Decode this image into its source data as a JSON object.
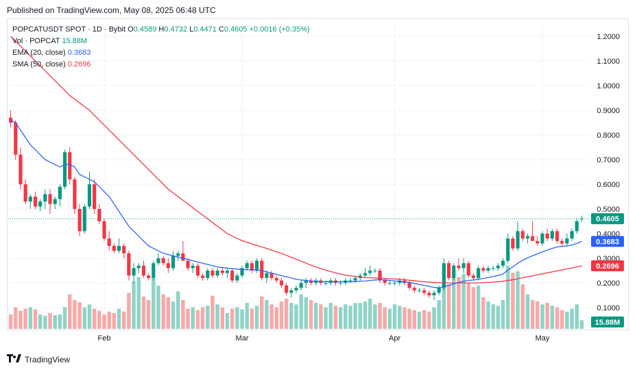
{
  "published": "Published on TradingView.com, May 08, 2025 06:48 UTC",
  "legend": {
    "symbol": "POPCATUSDT SPOT · 1D · Bybit",
    "o_label": "O",
    "o": "0.4589",
    "h_label": "H",
    "h": "0.4732",
    "l_label": "L",
    "l": "0.4471",
    "c_label": "C",
    "c": "0.4605",
    "change": "+0.0016 (+0.35%)",
    "vol_label": "Vol · POPCAT",
    "vol": "15.88M",
    "ema_label": "EMA (20, close)",
    "ema": "0.3683",
    "sma_label": "SMA (50, close)",
    "sma": "0.2696"
  },
  "brand": "TradingView",
  "colors": {
    "up": "#089981",
    "down": "#f23645",
    "ema": "#2962ff",
    "sma": "#f23645",
    "grid": "#f0f3fa",
    "vol_up": "#8fd3c7",
    "vol_down": "#f7a9a7"
  },
  "chart_data": {
    "type": "candlestick",
    "y_ticks": [
      "1.2000",
      "1.1000",
      "1.0000",
      "0.9000",
      "0.8000",
      "0.7000",
      "0.6000",
      "0.5000",
      "0.4000",
      "0.3000",
      "0.2000",
      "0.1000"
    ],
    "ylim": [
      0.0,
      1.22
    ],
    "x_labels": [
      {
        "label": "Feb",
        "index": 19
      },
      {
        "label": "Mar",
        "index": 47
      },
      {
        "label": "Apr",
        "index": 78
      },
      {
        "label": "May",
        "index": 108
      }
    ],
    "price_badges": [
      {
        "text": "0.4605",
        "value": 0.4605,
        "color": "#089981"
      },
      {
        "text": "0.3683",
        "value": 0.3683,
        "color": "#2962ff"
      },
      {
        "text": "0.2696",
        "value": 0.2696,
        "color": "#f23645"
      }
    ],
    "volume_badge": {
      "text": "15.88M",
      "color": "#089981"
    },
    "candles": [
      [
        0.87,
        0.9,
        0.83,
        0.85
      ],
      [
        0.85,
        0.86,
        0.7,
        0.72
      ],
      [
        0.72,
        0.75,
        0.58,
        0.6
      ],
      [
        0.6,
        0.62,
        0.52,
        0.53
      ],
      [
        0.53,
        0.56,
        0.5,
        0.55
      ],
      [
        0.55,
        0.57,
        0.5,
        0.51
      ],
      [
        0.51,
        0.54,
        0.49,
        0.53
      ],
      [
        0.53,
        0.58,
        0.5,
        0.56
      ],
      [
        0.56,
        0.58,
        0.48,
        0.52
      ],
      [
        0.52,
        0.55,
        0.5,
        0.54
      ],
      [
        0.54,
        0.6,
        0.51,
        0.59
      ],
      [
        0.59,
        0.74,
        0.58,
        0.73
      ],
      [
        0.73,
        0.75,
        0.6,
        0.62
      ],
      [
        0.62,
        0.63,
        0.48,
        0.5
      ],
      [
        0.5,
        0.52,
        0.39,
        0.41
      ],
      [
        0.41,
        0.52,
        0.4,
        0.51
      ],
      [
        0.51,
        0.65,
        0.5,
        0.6
      ],
      [
        0.6,
        0.62,
        0.48,
        0.5
      ],
      [
        0.5,
        0.52,
        0.44,
        0.45
      ],
      [
        0.45,
        0.46,
        0.37,
        0.38
      ],
      [
        0.38,
        0.41,
        0.33,
        0.35
      ],
      [
        0.35,
        0.36,
        0.32,
        0.33
      ],
      [
        0.33,
        0.38,
        0.32,
        0.35
      ],
      [
        0.35,
        0.36,
        0.3,
        0.32
      ],
      [
        0.32,
        0.33,
        0.21,
        0.23
      ],
      [
        0.23,
        0.28,
        0.2,
        0.26
      ],
      [
        0.26,
        0.28,
        0.24,
        0.27
      ],
      [
        0.27,
        0.29,
        0.22,
        0.23
      ],
      [
        0.23,
        0.24,
        0.21,
        0.22
      ],
      [
        0.22,
        0.29,
        0.21,
        0.28
      ],
      [
        0.28,
        0.32,
        0.27,
        0.3
      ],
      [
        0.3,
        0.31,
        0.27,
        0.28
      ],
      [
        0.28,
        0.3,
        0.24,
        0.26
      ],
      [
        0.26,
        0.33,
        0.25,
        0.31
      ],
      [
        0.31,
        0.33,
        0.29,
        0.32
      ],
      [
        0.32,
        0.37,
        0.3,
        0.29
      ],
      [
        0.29,
        0.3,
        0.25,
        0.26
      ],
      [
        0.26,
        0.28,
        0.24,
        0.27
      ],
      [
        0.27,
        0.28,
        0.22,
        0.23
      ],
      [
        0.23,
        0.24,
        0.21,
        0.22
      ],
      [
        0.22,
        0.26,
        0.21,
        0.25
      ],
      [
        0.25,
        0.26,
        0.22,
        0.23
      ],
      [
        0.23,
        0.26,
        0.22,
        0.25
      ],
      [
        0.25,
        0.26,
        0.23,
        0.24
      ],
      [
        0.24,
        0.26,
        0.22,
        0.25
      ],
      [
        0.25,
        0.26,
        0.2,
        0.21
      ],
      [
        0.21,
        0.24,
        0.2,
        0.23
      ],
      [
        0.23,
        0.27,
        0.22,
        0.26
      ],
      [
        0.26,
        0.29,
        0.25,
        0.28
      ],
      [
        0.28,
        0.29,
        0.24,
        0.25
      ],
      [
        0.25,
        0.3,
        0.24,
        0.29
      ],
      [
        0.29,
        0.3,
        0.21,
        0.22
      ],
      [
        0.22,
        0.25,
        0.2,
        0.24
      ],
      [
        0.24,
        0.25,
        0.21,
        0.22
      ],
      [
        0.22,
        0.23,
        0.2,
        0.21
      ],
      [
        0.21,
        0.22,
        0.18,
        0.19
      ],
      [
        0.19,
        0.2,
        0.15,
        0.16
      ],
      [
        0.16,
        0.18,
        0.14,
        0.17
      ],
      [
        0.17,
        0.19,
        0.16,
        0.18
      ],
      [
        0.18,
        0.21,
        0.17,
        0.2
      ],
      [
        0.2,
        0.22,
        0.18,
        0.21
      ],
      [
        0.21,
        0.22,
        0.19,
        0.2
      ],
      [
        0.2,
        0.22,
        0.19,
        0.21
      ],
      [
        0.21,
        0.22,
        0.19,
        0.2
      ],
      [
        0.2,
        0.21,
        0.19,
        0.2
      ],
      [
        0.2,
        0.22,
        0.19,
        0.21
      ],
      [
        0.21,
        0.22,
        0.19,
        0.2
      ],
      [
        0.2,
        0.21,
        0.19,
        0.2
      ],
      [
        0.2,
        0.22,
        0.19,
        0.21
      ],
      [
        0.21,
        0.22,
        0.2,
        0.21
      ],
      [
        0.21,
        0.23,
        0.2,
        0.22
      ],
      [
        0.22,
        0.24,
        0.21,
        0.23
      ],
      [
        0.23,
        0.26,
        0.22,
        0.24
      ],
      [
        0.24,
        0.27,
        0.23,
        0.25
      ],
      [
        0.25,
        0.26,
        0.24,
        0.25
      ],
      [
        0.25,
        0.26,
        0.2,
        0.21
      ],
      [
        0.21,
        0.22,
        0.19,
        0.2
      ],
      [
        0.2,
        0.21,
        0.19,
        0.2
      ],
      [
        0.2,
        0.21,
        0.19,
        0.2
      ],
      [
        0.2,
        0.22,
        0.19,
        0.21
      ],
      [
        0.21,
        0.22,
        0.19,
        0.2
      ],
      [
        0.2,
        0.21,
        0.17,
        0.18
      ],
      [
        0.18,
        0.19,
        0.16,
        0.17
      ],
      [
        0.17,
        0.18,
        0.16,
        0.17
      ],
      [
        0.17,
        0.18,
        0.15,
        0.16
      ],
      [
        0.16,
        0.17,
        0.14,
        0.15
      ],
      [
        0.15,
        0.17,
        0.13,
        0.16
      ],
      [
        0.16,
        0.19,
        0.15,
        0.18
      ],
      [
        0.18,
        0.3,
        0.17,
        0.28
      ],
      [
        0.28,
        0.29,
        0.21,
        0.22
      ],
      [
        0.22,
        0.28,
        0.21,
        0.27
      ],
      [
        0.27,
        0.3,
        0.25,
        0.26
      ],
      [
        0.26,
        0.3,
        0.24,
        0.28
      ],
      [
        0.28,
        0.29,
        0.22,
        0.23
      ],
      [
        0.23,
        0.24,
        0.21,
        0.22
      ],
      [
        0.22,
        0.27,
        0.21,
        0.26
      ],
      [
        0.26,
        0.27,
        0.24,
        0.25
      ],
      [
        0.25,
        0.27,
        0.24,
        0.26
      ],
      [
        0.26,
        0.27,
        0.25,
        0.26
      ],
      [
        0.26,
        0.28,
        0.25,
        0.27
      ],
      [
        0.27,
        0.3,
        0.26,
        0.29
      ],
      [
        0.29,
        0.4,
        0.28,
        0.38
      ],
      [
        0.38,
        0.39,
        0.33,
        0.34
      ],
      [
        0.34,
        0.45,
        0.33,
        0.41
      ],
      [
        0.41,
        0.42,
        0.37,
        0.38
      ],
      [
        0.38,
        0.4,
        0.36,
        0.39
      ],
      [
        0.39,
        0.45,
        0.38,
        0.37
      ],
      [
        0.37,
        0.39,
        0.35,
        0.36
      ],
      [
        0.36,
        0.41,
        0.35,
        0.4
      ],
      [
        0.4,
        0.42,
        0.37,
        0.38
      ],
      [
        0.38,
        0.42,
        0.37,
        0.41
      ],
      [
        0.41,
        0.42,
        0.36,
        0.37
      ],
      [
        0.37,
        0.38,
        0.35,
        0.36
      ],
      [
        0.36,
        0.4,
        0.35,
        0.38
      ],
      [
        0.38,
        0.42,
        0.37,
        0.41
      ],
      [
        0.41,
        0.46,
        0.4,
        0.45
      ],
      [
        0.4589,
        0.4732,
        0.4471,
        0.4605
      ]
    ],
    "volume_max": 1.0,
    "volumes": [
      0.2,
      0.3,
      0.25,
      0.28,
      0.3,
      0.27,
      0.2,
      0.18,
      0.22,
      0.19,
      0.2,
      0.3,
      0.48,
      0.4,
      0.37,
      0.3,
      0.34,
      0.28,
      0.25,
      0.2,
      0.24,
      0.22,
      0.28,
      0.24,
      0.5,
      0.66,
      0.72,
      0.45,
      0.4,
      0.7,
      0.6,
      0.48,
      0.44,
      0.38,
      0.52,
      0.4,
      0.28,
      0.3,
      0.26,
      0.3,
      0.32,
      0.46,
      0.34,
      0.3,
      0.22,
      0.28,
      0.3,
      0.27,
      0.36,
      0.28,
      0.32,
      0.45,
      0.4,
      0.34,
      0.3,
      0.38,
      0.42,
      0.36,
      0.34,
      0.48,
      0.44,
      0.4,
      0.36,
      0.34,
      0.3,
      0.36,
      0.32,
      0.3,
      0.34,
      0.32,
      0.36,
      0.36,
      0.38,
      0.42,
      0.34,
      0.36,
      0.3,
      0.28,
      0.34,
      0.32,
      0.3,
      0.28,
      0.26,
      0.24,
      0.26,
      0.24,
      0.3,
      0.4,
      0.88,
      0.62,
      0.78,
      0.72,
      0.76,
      0.64,
      0.58,
      0.6,
      0.44,
      0.38,
      0.34,
      0.32,
      0.4,
      0.88,
      0.78,
      0.8,
      0.62,
      0.48,
      0.4,
      0.38,
      0.34,
      0.36,
      0.32,
      0.3,
      0.26,
      0.24,
      0.28,
      0.34,
      0.12
    ],
    "ema": [
      0.86,
      0.85,
      0.82,
      0.79,
      0.76,
      0.74,
      0.72,
      0.7,
      0.69,
      0.68,
      0.67,
      0.68,
      0.68,
      0.67,
      0.64,
      0.63,
      0.62,
      0.61,
      0.59,
      0.57,
      0.55,
      0.52,
      0.49,
      0.46,
      0.43,
      0.41,
      0.39,
      0.37,
      0.35,
      0.34,
      0.33,
      0.32,
      0.315,
      0.31,
      0.305,
      0.3,
      0.295,
      0.29,
      0.285,
      0.28,
      0.275,
      0.27,
      0.265,
      0.262,
      0.26,
      0.258,
      0.256,
      0.255,
      0.254,
      0.253,
      0.252,
      0.25,
      0.245,
      0.24,
      0.235,
      0.23,
      0.225,
      0.22,
      0.215,
      0.212,
      0.21,
      0.208,
      0.207,
      0.206,
      0.205,
      0.205,
      0.205,
      0.205,
      0.205,
      0.205,
      0.206,
      0.207,
      0.208,
      0.21,
      0.212,
      0.213,
      0.212,
      0.21,
      0.208,
      0.206,
      0.204,
      0.202,
      0.198,
      0.194,
      0.19,
      0.186,
      0.182,
      0.18,
      0.186,
      0.19,
      0.196,
      0.202,
      0.207,
      0.21,
      0.212,
      0.215,
      0.218,
      0.222,
      0.226,
      0.23,
      0.236,
      0.252,
      0.265,
      0.28,
      0.292,
      0.302,
      0.31,
      0.318,
      0.326,
      0.333,
      0.34,
      0.346,
      0.348,
      0.35,
      0.354,
      0.36,
      0.3683
    ],
    "sma": [
      1.2,
      1.18,
      1.16,
      1.14,
      1.12,
      1.1,
      1.08,
      1.06,
      1.04,
      1.02,
      1.0,
      0.98,
      0.96,
      0.945,
      0.93,
      0.915,
      0.9,
      0.88,
      0.86,
      0.84,
      0.82,
      0.8,
      0.78,
      0.76,
      0.74,
      0.72,
      0.7,
      0.68,
      0.66,
      0.64,
      0.62,
      0.6,
      0.58,
      0.565,
      0.55,
      0.535,
      0.52,
      0.505,
      0.49,
      0.475,
      0.46,
      0.445,
      0.43,
      0.415,
      0.4,
      0.39,
      0.38,
      0.372,
      0.365,
      0.358,
      0.352,
      0.346,
      0.34,
      0.333,
      0.326,
      0.32,
      0.312,
      0.304,
      0.296,
      0.288,
      0.28,
      0.272,
      0.265,
      0.258,
      0.252,
      0.246,
      0.241,
      0.236,
      0.232,
      0.229,
      0.226,
      0.224,
      0.222,
      0.221,
      0.22,
      0.219,
      0.218,
      0.217,
      0.216,
      0.215,
      0.213,
      0.211,
      0.209,
      0.207,
      0.205,
      0.203,
      0.202,
      0.201,
      0.2,
      0.2,
      0.2,
      0.2,
      0.2,
      0.2,
      0.2,
      0.2,
      0.201,
      0.202,
      0.203,
      0.205,
      0.207,
      0.21,
      0.213,
      0.217,
      0.221,
      0.225,
      0.229,
      0.233,
      0.237,
      0.241,
      0.245,
      0.249,
      0.253,
      0.257,
      0.261,
      0.265,
      0.2696
    ]
  }
}
